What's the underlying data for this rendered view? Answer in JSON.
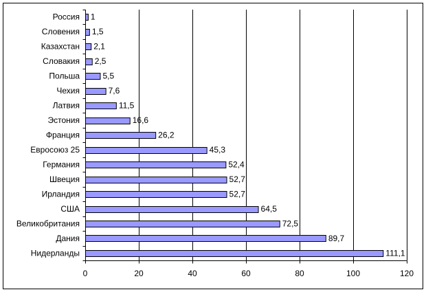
{
  "chart_data": {
    "type": "bar",
    "orientation": "horizontal",
    "categories": [
      "Россия",
      "Словения",
      "Казахстан",
      "Словакия",
      "Польша",
      "Чехия",
      "Латвия",
      "Эстония",
      "Франция",
      "Евросоюз 25",
      "Германия",
      "Швеция",
      "Ирландия",
      "США",
      "Великобритания",
      "Дания",
      "Нидерланды"
    ],
    "values": [
      1,
      1.5,
      2.1,
      2.5,
      5.5,
      7.6,
      11.5,
      16.6,
      26.2,
      45.3,
      52.4,
      52.7,
      52.7,
      64.5,
      72.5,
      89.7,
      111.1
    ],
    "data_labels": [
      "1",
      "1,5",
      "2,1",
      "2,5",
      "5,5",
      "7,6",
      "11,5",
      "16,6",
      "26,2",
      "45,3",
      "52,4",
      "52,7",
      "52,7",
      "64,5",
      "72,5",
      "89,7",
      "111,1"
    ],
    "xlim": [
      0,
      120
    ],
    "xticks": [
      0,
      20,
      40,
      60,
      80,
      100,
      120
    ],
    "grid": {
      "vertical": true,
      "horizontal": false
    },
    "legend": false,
    "colors": {
      "bar_fill": "#9999FF",
      "bar_border": "#000000",
      "gridline": "#000000",
      "axis": "#000000",
      "frame": "#000000",
      "background": "#FFFFFF"
    }
  }
}
